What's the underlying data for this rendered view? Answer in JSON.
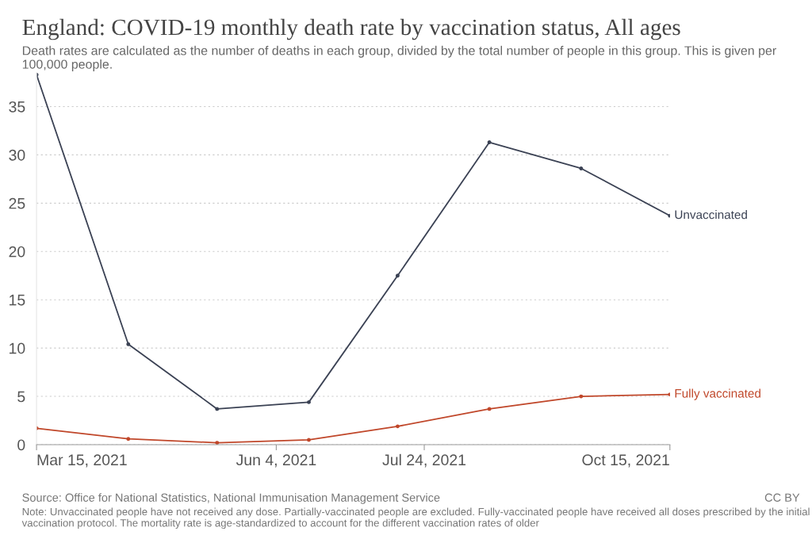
{
  "chart_data": {
    "type": "line",
    "title": "England: COVID-19 monthly death rate by vaccination status, All ages",
    "subtitle": "Death rates are calculated as the number of deaths in each group, divided by the total number of people in this group. This is given per 100,000 people.",
    "x": [
      "2021-03-15",
      "2021-04-15",
      "2021-05-15",
      "2021-06-15",
      "2021-07-15",
      "2021-08-15",
      "2021-09-15",
      "2021-10-15"
    ],
    "series": [
      {
        "name": "Unvaccinated",
        "color": "#3b4254",
        "values": [
          38.3,
          10.4,
          3.7,
          4.4,
          17.5,
          31.3,
          28.6,
          23.7
        ]
      },
      {
        "name": "Fully vaccinated",
        "color": "#c0472a",
        "values": [
          1.7,
          0.6,
          0.2,
          0.5,
          1.9,
          3.7,
          5.0,
          5.2
        ]
      }
    ],
    "xlim": [
      "2021-03-15",
      "2021-10-15"
    ],
    "xticks": [
      {
        "value": "2021-03-15",
        "label": "Mar 15, 2021"
      },
      {
        "value": "2021-06-04",
        "label": "Jun 4, 2021"
      },
      {
        "value": "2021-07-24",
        "label": "Jul 24, 2021"
      },
      {
        "value": "2021-10-15",
        "label": "Oct 15, 2021"
      }
    ],
    "ylim": [
      0,
      38.5
    ],
    "yticks": [
      0,
      5,
      10,
      15,
      20,
      25,
      30,
      35
    ],
    "grid": "y",
    "marker": "circle",
    "line_style": "solid",
    "annotations": [
      "Source: Office for National Statistics, National Immunisation Management Service",
      "CC BY",
      "Note: Unvaccinated people have not received any dose. Partially-vaccinated people are excluded. Fully-vaccinated people have received all doses prescribed by the initial vaccination protocol. The mortality rate is age-standardized to account for the different vaccination rates of older"
    ]
  }
}
